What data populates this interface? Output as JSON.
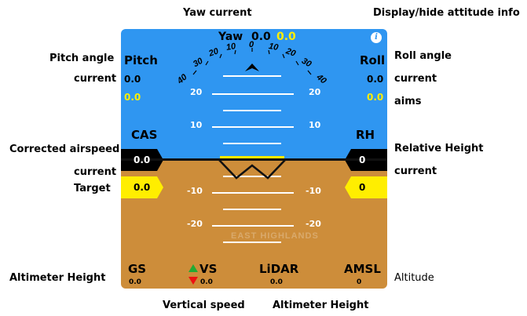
{
  "annotations": {
    "yaw_title": "Yaw   current",
    "display_toggle": "Display/hide attitude info",
    "pitch_angle": "Pitch angle",
    "pitch_current": "current",
    "roll_angle": "Roll angle",
    "roll_current": "current",
    "roll_aims": "aims",
    "corrected_airspeed": "Corrected airspeed",
    "cas_current": "current",
    "cas_target": "Target",
    "relative_height": "Relative Height",
    "rh_current": "current",
    "altimeter_height_left": "Altimeter Height",
    "altitude": "Altitude",
    "vertical_speed": "Vertical speed",
    "altimeter_height_bottom": "Altimeter Height"
  },
  "instrument": {
    "yaw_label": "Yaw",
    "yaw_current": "0.0",
    "yaw_target": "0.0",
    "info_icon": "info-icon",
    "pitch_label": "Pitch",
    "pitch_current": "0.0",
    "pitch_target": "0.0",
    "roll_label": "Roll",
    "roll_current": "0.0",
    "roll_target": "0.0",
    "heading_ticks": [
      "40",
      "30",
      "20",
      "10",
      "0",
      "10",
      "20",
      "30",
      "40"
    ],
    "pitch_ladder": {
      "left": [
        "20",
        "10",
        "-10",
        "-20"
      ],
      "right": [
        "20",
        "10",
        "-10",
        "-20"
      ]
    },
    "cas_label": "CAS",
    "cas_current": "0.0",
    "cas_target": "0.0",
    "rh_label": "RH",
    "rh_current": "0",
    "rh_target": "0",
    "gs_label": "GS",
    "gs_value": "0.0",
    "vs_label": "VS",
    "vs_value": "0.0",
    "lidar_label": "LiDAR",
    "lidar_value": "0.0",
    "amsl_label": "AMSL",
    "amsl_value": "0",
    "map_watermark": "EAST HIGHLANDS"
  },
  "colors": {
    "sky": "#2f96f1",
    "ground": "#cd8d3a",
    "target": "#ffee00",
    "current_box": "#000000",
    "vs_up": "#22aa33",
    "vs_down": "#ee1111"
  }
}
